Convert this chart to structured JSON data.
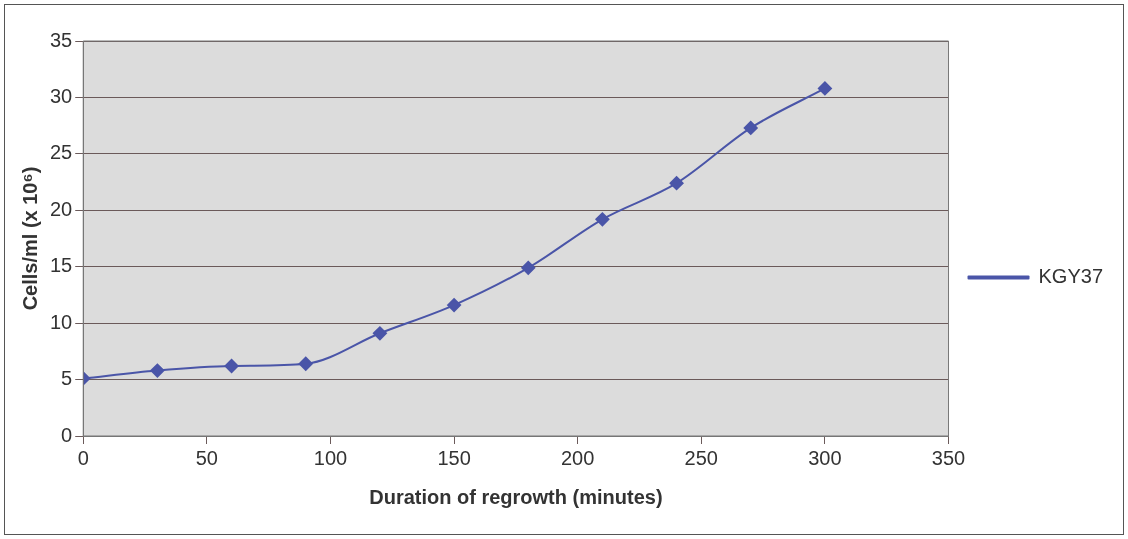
{
  "chart_data": {
    "type": "line",
    "xlabel": "Duration of regrowth (minutes)",
    "ylabel": "Cells/ml (x 10⁶)",
    "x": [
      0,
      30,
      60,
      90,
      120,
      150,
      180,
      210,
      240,
      270,
      300
    ],
    "series": [
      {
        "name": "KGY37",
        "color": "#4a55a8",
        "values": [
          5.1,
          5.8,
          6.2,
          6.4,
          9.1,
          11.6,
          14.9,
          19.2,
          22.4,
          27.3,
          30.8
        ]
      }
    ],
    "xlim": [
      0,
      350
    ],
    "xticks": [
      0,
      50,
      100,
      150,
      200,
      250,
      300,
      350
    ],
    "ylim": [
      0,
      35
    ],
    "yticks": [
      0,
      5,
      10,
      15,
      20,
      25,
      30,
      35
    ],
    "grid": "y",
    "legend": "right",
    "marker": "diamond",
    "line_style": "solid"
  }
}
